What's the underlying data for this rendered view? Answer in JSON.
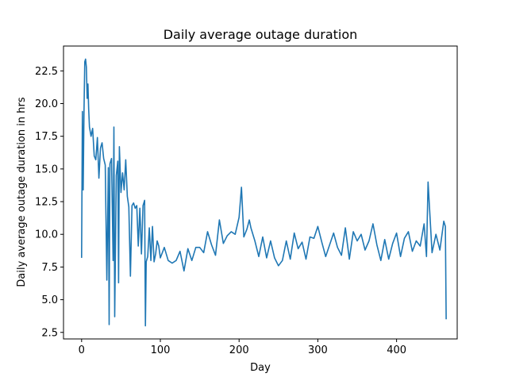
{
  "chart_data": {
    "type": "line",
    "title": "Daily average outage duration",
    "xlabel": "Day",
    "ylabel": "Daily average outage duration in hrs",
    "xlim": [
      -23,
      477
    ],
    "ylim": [
      2.0,
      24.4
    ],
    "xticks": [
      0,
      100,
      200,
      300,
      400
    ],
    "yticks": [
      2.5,
      5.0,
      7.5,
      10.0,
      12.5,
      15.0,
      17.5,
      20.0,
      22.5
    ],
    "xtick_labels": [
      "0",
      "100",
      "200",
      "300",
      "400"
    ],
    "ytick_labels": [
      "2.5",
      "5.0",
      "7.5",
      "10.0",
      "12.5",
      "15.0",
      "17.5",
      "20.0",
      "22.5"
    ],
    "grid": false,
    "series": [
      {
        "color": "#1f77b4",
        "x": [
          0,
          1,
          2,
          3,
          4,
          5,
          6,
          7,
          8,
          9,
          10,
          12,
          14,
          16,
          18,
          20,
          22,
          24,
          26,
          28,
          30,
          32,
          34,
          35,
          36,
          38,
          40,
          41,
          42,
          44,
          46,
          47,
          48,
          50,
          52,
          54,
          56,
          58,
          60,
          62,
          64,
          66,
          68,
          70,
          72,
          74,
          76,
          78,
          80,
          81,
          82,
          84,
          86,
          88,
          90,
          92,
          94,
          96,
          98,
          100,
          105,
          110,
          115,
          120,
          125,
          130,
          135,
          140,
          145,
          150,
          155,
          160,
          165,
          170,
          175,
          180,
          185,
          190,
          195,
          200,
          203,
          206,
          210,
          213,
          215,
          220,
          225,
          230,
          235,
          240,
          245,
          250,
          255,
          260,
          265,
          270,
          275,
          280,
          285,
          290,
          295,
          300,
          305,
          310,
          315,
          320,
          325,
          330,
          335,
          340,
          345,
          350,
          355,
          360,
          365,
          370,
          375,
          380,
          385,
          390,
          395,
          400,
          405,
          410,
          415,
          420,
          425,
          430,
          435,
          438,
          440,
          445,
          450,
          455,
          460,
          462,
          463
        ],
        "y": [
          8.2,
          19.4,
          13.4,
          19.3,
          23.2,
          23.4,
          22.8,
          20.4,
          21.5,
          19.6,
          18.2,
          17.5,
          18.1,
          16.0,
          15.7,
          17.4,
          14.3,
          16.6,
          17.0,
          15.8,
          15.3,
          6.5,
          15.1,
          3.1,
          15.4,
          15.8,
          8.0,
          18.2,
          3.7,
          14.5,
          15.6,
          6.3,
          16.7,
          13.2,
          14.7,
          13.4,
          15.7,
          12.9,
          12.1,
          6.8,
          12.2,
          12.4,
          12.0,
          12.2,
          9.1,
          12.0,
          8.5,
          12.2,
          12.6,
          3.0,
          7.9,
          8.3,
          10.5,
          8.0,
          10.6,
          7.9,
          8.5,
          9.5,
          9.1,
          8.2,
          9.0,
          8.0,
          7.8,
          8.0,
          8.7,
          7.2,
          8.9,
          8.0,
          9.0,
          9.0,
          8.6,
          10.2,
          9.2,
          8.4,
          11.1,
          9.3,
          9.9,
          10.2,
          10.0,
          11.3,
          13.6,
          9.8,
          10.4,
          11.1,
          10.5,
          9.5,
          8.3,
          9.8,
          8.2,
          9.5,
          8.2,
          7.6,
          8.0,
          9.5,
          8.1,
          10.1,
          8.9,
          9.4,
          8.1,
          9.8,
          9.7,
          10.6,
          9.4,
          8.3,
          9.2,
          10.1,
          9.0,
          8.4,
          10.5,
          8.1,
          10.2,
          9.5,
          10.0,
          8.8,
          9.5,
          10.8,
          9.2,
          8.0,
          9.6,
          8.1,
          9.3,
          10.1,
          8.3,
          9.7,
          10.2,
          8.7,
          9.5,
          9.1,
          10.8,
          8.3,
          14.0,
          8.6,
          10.0,
          8.8,
          11.0,
          10.6,
          3.5
        ]
      }
    ]
  }
}
